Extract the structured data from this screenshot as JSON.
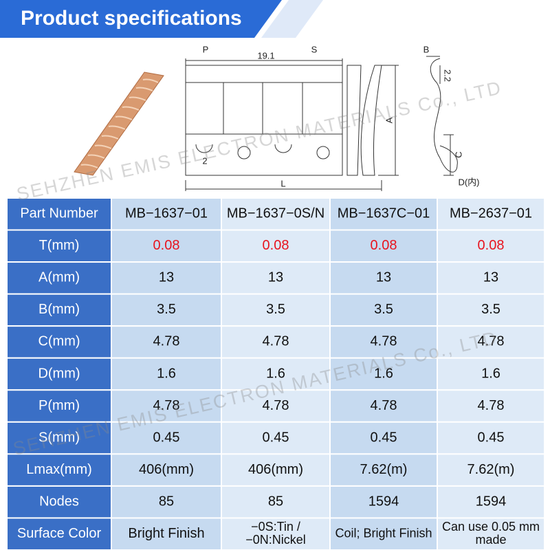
{
  "header": {
    "title": "Product specifications"
  },
  "diagram": {
    "labels": [
      "P",
      "19.1",
      "S",
      "B",
      "2.2",
      "A",
      "C",
      "D(内)",
      "2",
      "L"
    ]
  },
  "table": {
    "header": [
      "Part Number",
      "MB−1637−01",
      "MB−1637−0S/N",
      "MB−1637C−01",
      "MB−2637−01"
    ],
    "rows": [
      [
        "T(mm)",
        "0.08",
        "0.08",
        "0.08",
        "0.08"
      ],
      [
        "A(mm)",
        "13",
        "13",
        "13",
        "13"
      ],
      [
        "B(mm)",
        "3.5",
        "3.5",
        "3.5",
        "3.5"
      ],
      [
        "C(mm)",
        "4.78",
        "4.78",
        "4.78",
        "4.78"
      ],
      [
        "D(mm)",
        "1.6",
        "1.6",
        "1.6",
        "1.6"
      ],
      [
        "P(mm)",
        "4.78",
        "4.78",
        "4.78",
        "4.78"
      ],
      [
        "S(mm)",
        "0.45",
        "0.45",
        "0.45",
        "0.45"
      ],
      [
        "Lmax(mm)",
        "406(mm)",
        "406(mm)",
        "7.62(m)",
        "7.62(m)"
      ],
      [
        "Nodes",
        "85",
        "85",
        "1594",
        "1594"
      ],
      [
        "Surface Color",
        "Bright Finish",
        [
          "−0S:Tin /",
          "−0N:Nickel"
        ],
        "Coil; Bright Finish",
        [
          "Can use 0.05 mm",
          "made"
        ]
      ]
    ]
  },
  "watermark": [
    "SEHZHEN EMIS ELECTRON MATERIALS Co., LTD",
    "SEHZHEN EMIS ELECTRON MATERIALS Co., LTD"
  ]
}
